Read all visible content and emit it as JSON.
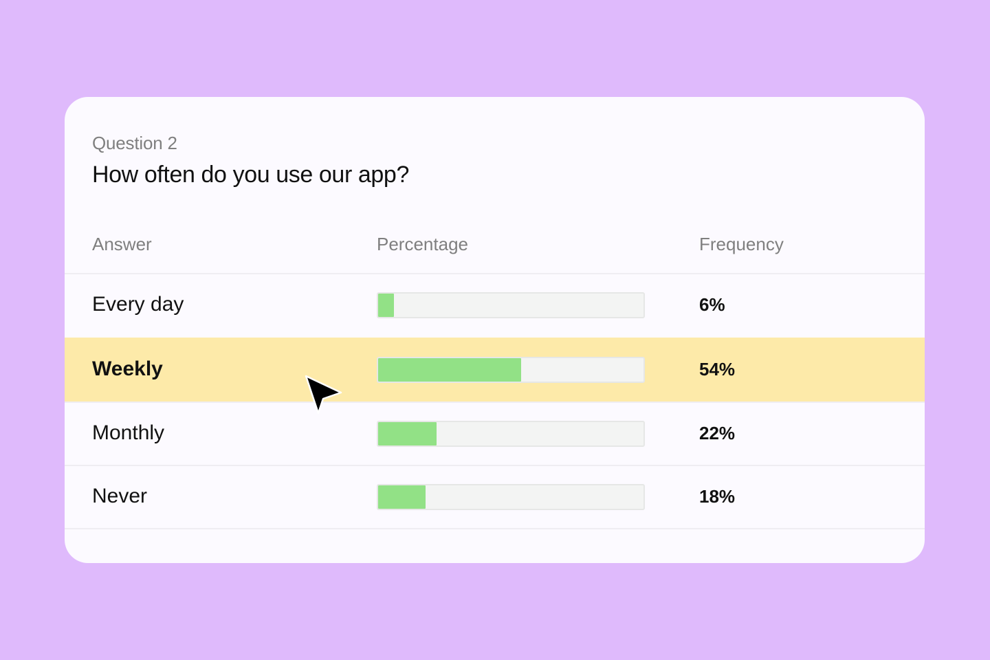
{
  "question": {
    "number_label": "Question 2",
    "title": "How often do you use our app?"
  },
  "table": {
    "headers": {
      "answer": "Answer",
      "percentage": "Percentage",
      "frequency": "Frequency"
    },
    "rows": [
      {
        "answer": "Every day",
        "percent": 6,
        "frequency": "6%",
        "selected": false
      },
      {
        "answer": "Weekly",
        "percent": 54,
        "frequency": "54%",
        "selected": true
      },
      {
        "answer": "Monthly",
        "percent": 22,
        "frequency": "22%",
        "selected": false
      },
      {
        "answer": "Never",
        "percent": 18,
        "frequency": "18%",
        "selected": false
      }
    ]
  },
  "colors": {
    "background": "#dfbafc",
    "card": "#fcfaff",
    "bar_fill": "#92e186",
    "bar_track": "#f3f4f3",
    "selected_row": "#fdeaa9"
  },
  "icons": {
    "cursor": "mouse-pointer-icon"
  }
}
